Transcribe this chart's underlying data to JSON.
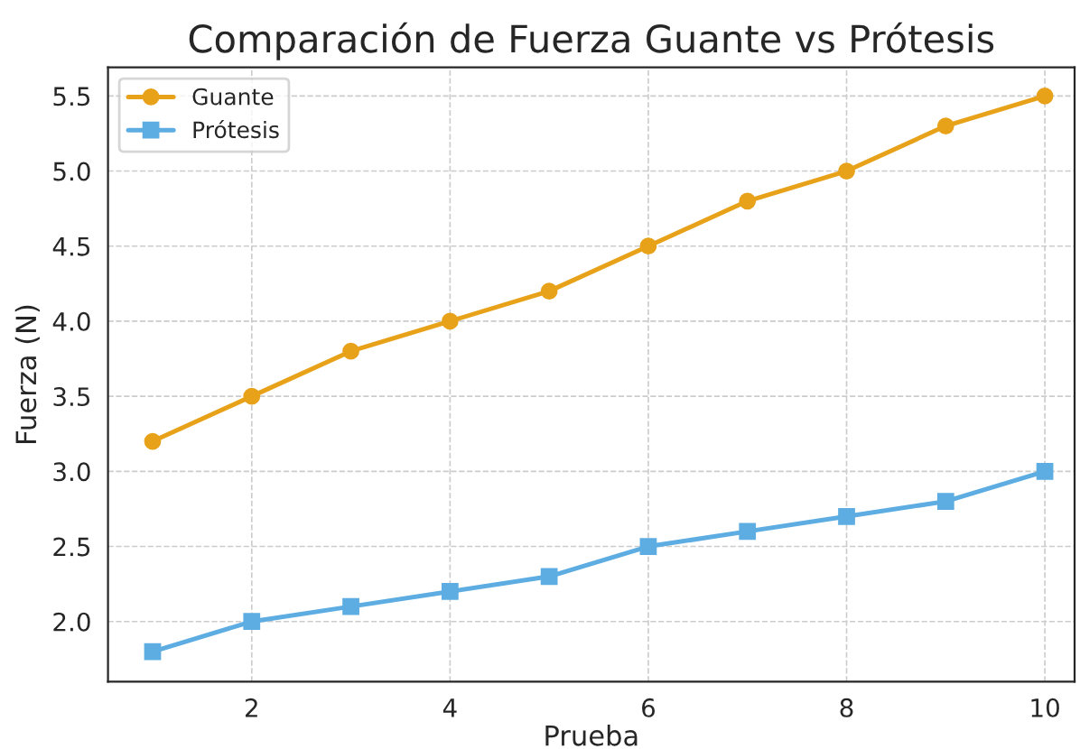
{
  "chart_data": {
    "type": "line",
    "title": "Comparación de Fuerza Guante vs Prótesis",
    "xlabel": "Prueba",
    "ylabel": "Fuerza (N)",
    "x": [
      1,
      2,
      3,
      4,
      5,
      6,
      7,
      8,
      9,
      10
    ],
    "series": [
      {
        "name": "Guante",
        "color": "#e8a21a",
        "marker": "circle",
        "values": [
          3.2,
          3.5,
          3.8,
          4.0,
          4.2,
          4.5,
          4.8,
          5.0,
          5.3,
          5.5
        ]
      },
      {
        "name": "Prótesis",
        "color": "#5dade2",
        "marker": "square",
        "values": [
          1.8,
          2.0,
          2.1,
          2.2,
          2.3,
          2.5,
          2.6,
          2.7,
          2.8,
          3.0
        ]
      }
    ],
    "xlim": [
      0.55,
      10.3
    ],
    "xticks": [
      2,
      4,
      6,
      8,
      10
    ],
    "ylim": [
      1.6,
      5.69
    ],
    "yticks": [
      {
        "value": 2.0,
        "label": "2.0"
      },
      {
        "value": 2.5,
        "label": "2.5"
      },
      {
        "value": 3.0,
        "label": "3.0"
      },
      {
        "value": 3.5,
        "label": "3.5"
      },
      {
        "value": 4.0,
        "label": "4.0"
      },
      {
        "value": 4.5,
        "label": "4.5"
      },
      {
        "value": 5.0,
        "label": "5.0"
      },
      {
        "value": 5.5,
        "label": "5.5"
      }
    ],
    "grid": true,
    "legend": "top left",
    "line_style": "solid"
  }
}
